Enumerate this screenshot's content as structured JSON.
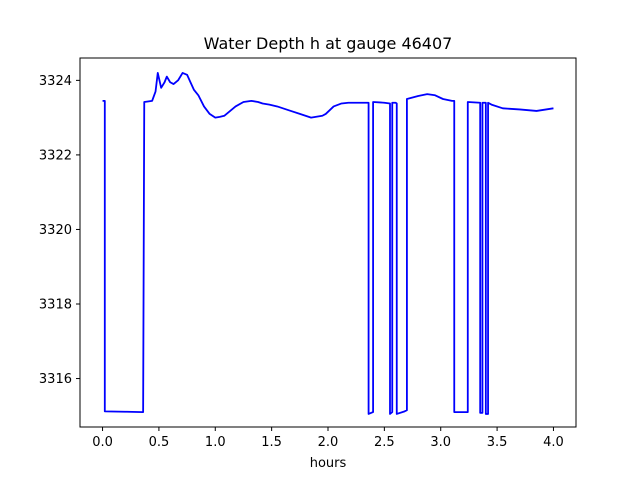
{
  "chart_data": {
    "type": "line",
    "title": "Water Depth h at gauge 46407",
    "xlabel": "hours",
    "ylabel": "",
    "xlim": [
      -0.2,
      4.2
    ],
    "ylim": [
      3314.7,
      3324.6
    ],
    "xticks": [
      0.0,
      0.5,
      1.0,
      1.5,
      2.0,
      2.5,
      3.0,
      3.5,
      4.0
    ],
    "xtick_labels": [
      "0.0",
      "0.5",
      "1.0",
      "1.5",
      "2.0",
      "2.5",
      "3.0",
      "3.5",
      "4.0"
    ],
    "yticks": [
      3316,
      3318,
      3320,
      3322,
      3324
    ],
    "ytick_labels": [
      "3316",
      "3318",
      "3320",
      "3322",
      "3324"
    ],
    "grid": false,
    "line_color": "#0000ff",
    "series": [
      {
        "x": [
          0.0,
          0.02,
          0.02,
          0.2,
          0.36,
          0.37,
          0.44,
          0.47,
          0.49,
          0.52,
          0.55,
          0.57,
          0.6,
          0.63,
          0.67,
          0.71,
          0.75,
          0.78,
          0.81,
          0.85,
          0.9,
          0.95,
          1.0,
          1.04,
          1.08,
          1.12,
          1.18,
          1.25,
          1.32,
          1.38,
          1.42,
          1.48,
          1.55,
          1.65,
          1.75,
          1.85,
          1.95,
          1.98,
          2.05,
          2.12,
          2.18,
          2.25,
          2.33,
          2.36,
          2.36,
          2.4,
          2.4,
          2.5,
          2.55,
          2.55,
          2.57,
          2.57,
          2.6,
          2.61,
          2.61,
          2.68,
          2.7,
          2.7,
          2.8,
          2.88,
          2.95,
          3.02,
          3.1,
          3.12,
          3.12,
          3.24,
          3.24,
          3.35,
          3.35,
          3.37,
          3.37,
          3.4,
          3.4,
          3.42,
          3.42,
          3.45,
          3.45,
          3.55,
          3.7,
          3.85,
          4.0
        ],
        "y": [
          3323.45,
          3323.45,
          3315.12,
          3315.11,
          3315.1,
          3323.42,
          3323.45,
          3323.7,
          3324.2,
          3323.8,
          3323.95,
          3324.1,
          3323.95,
          3323.9,
          3324.0,
          3324.2,
          3324.15,
          3323.95,
          3323.75,
          3323.6,
          3323.3,
          3323.1,
          3323.0,
          3323.02,
          3323.05,
          3323.15,
          3323.3,
          3323.42,
          3323.45,
          3323.42,
          3323.38,
          3323.35,
          3323.3,
          3323.2,
          3323.1,
          3323.0,
          3323.05,
          3323.1,
          3323.3,
          3323.38,
          3323.4,
          3323.4,
          3323.4,
          3323.4,
          3315.05,
          3315.1,
          3323.42,
          3323.4,
          3323.38,
          3315.05,
          3315.1,
          3323.4,
          3323.4,
          3323.38,
          3315.05,
          3315.12,
          3315.15,
          3323.5,
          3323.58,
          3323.63,
          3323.6,
          3323.5,
          3323.45,
          3323.45,
          3315.1,
          3315.1,
          3323.42,
          3323.4,
          3315.08,
          3315.08,
          3323.4,
          3323.4,
          3315.05,
          3315.05,
          3323.4,
          3323.35,
          3323.35,
          3323.25,
          3323.22,
          3323.18,
          3323.25
        ]
      }
    ]
  }
}
